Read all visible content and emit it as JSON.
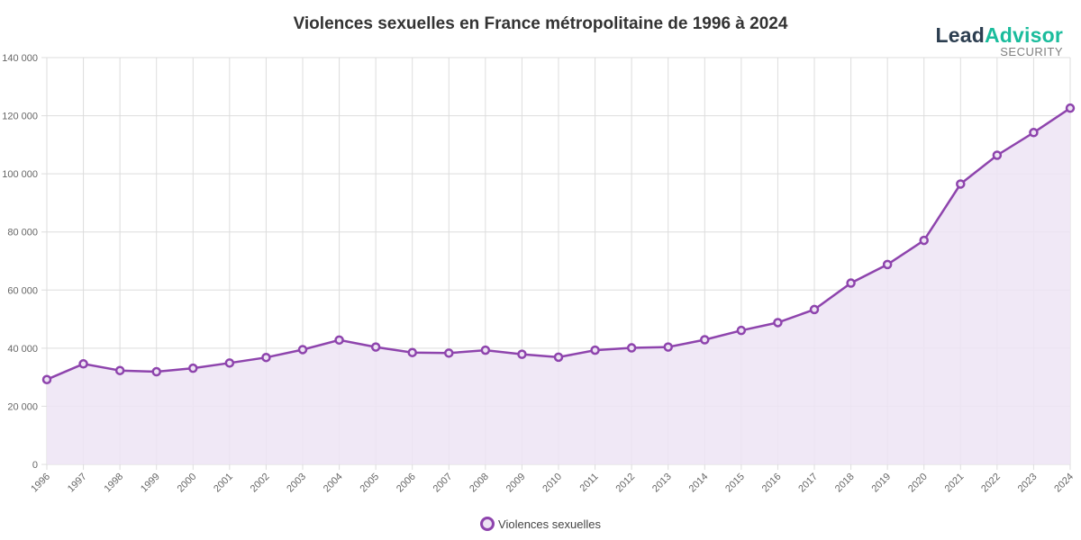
{
  "header": {
    "title": "Violences sexuelles en France métropolitaine de 1996 à 2024"
  },
  "logo": {
    "part1": "Lead",
    "part2": "Advisor",
    "subtitle": "SECURITY",
    "colors": {
      "lead": "#2c3e50",
      "advisor": "#1abc9c"
    }
  },
  "legend": {
    "label": "Violences sexuelles"
  },
  "colors": {
    "line": "#8e44ad",
    "fill": "#ede4f4",
    "grid": "#dddddd"
  },
  "chart_data": {
    "type": "line",
    "title": "Violences sexuelles en France métropolitaine de 1996 à 2024",
    "xlabel": "",
    "ylabel": "",
    "ylim": [
      0,
      140000
    ],
    "yticks": [
      0,
      20000,
      40000,
      60000,
      80000,
      100000,
      120000,
      140000
    ],
    "ytick_labels": [
      "0",
      "20 000",
      "40 000",
      "60 000",
      "80 000",
      "100 000",
      "120 000",
      "140 000"
    ],
    "grid": true,
    "legend_position": "bottom",
    "categories": [
      "1996",
      "1997",
      "1998",
      "1999",
      "2000",
      "2001",
      "2002",
      "2003",
      "2004",
      "2005",
      "2006",
      "2007",
      "2008",
      "2009",
      "2010",
      "2011",
      "2012",
      "2013",
      "2014",
      "2015",
      "2016",
      "2017",
      "2018",
      "2019",
      "2020",
      "2021",
      "2022",
      "2023",
      "2024"
    ],
    "series": [
      {
        "name": "Violences sexuelles",
        "fill": true,
        "values": [
          29200,
          34600,
          32300,
          31900,
          33100,
          34900,
          36800,
          39500,
          42800,
          40400,
          38500,
          38300,
          39300,
          37900,
          36900,
          39300,
          40100,
          40400,
          42900,
          46100,
          48800,
          53300,
          62400,
          68800,
          77100,
          96500,
          106400,
          114200,
          122600
        ]
      }
    ]
  }
}
